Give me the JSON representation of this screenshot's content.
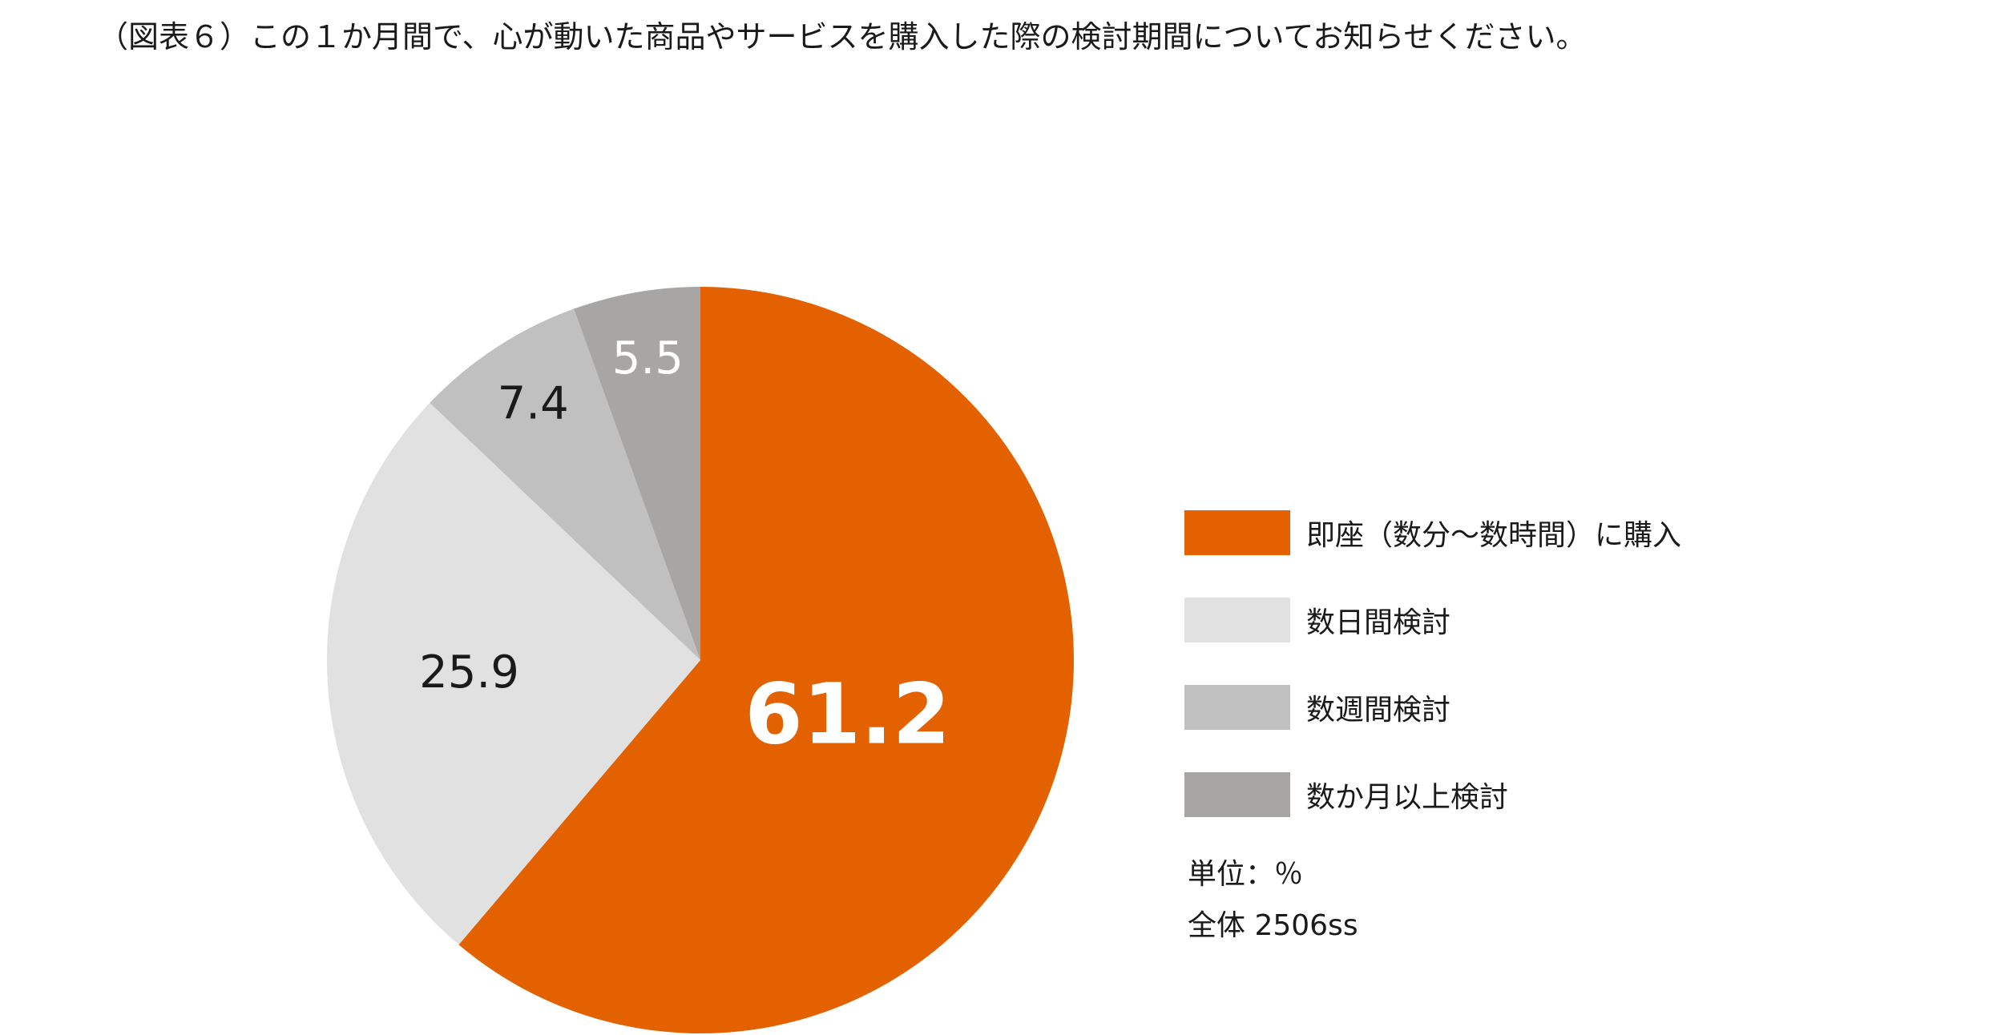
{
  "title": "（図表６）この１か月間で、心が動いた商品やサービスを購入した際の検討期間についてお知らせください。",
  "chart_data": {
    "type": "pie",
    "start_angle_deg": 0,
    "direction": "clockwise",
    "slices": [
      {
        "label": "即座（数分〜数時間）に購入",
        "value": 61.2,
        "display": "61.2",
        "color": "#E46100",
        "label_color": "#ffffff",
        "label_style": "large"
      },
      {
        "label": "数日間検討",
        "value": 25.9,
        "display": "25.9",
        "color": "#E2E1E1",
        "label_color": "#1a1a1a",
        "label_style": "normal"
      },
      {
        "label": "数週間検討",
        "value": 7.4,
        "display": "7.4",
        "color": "#C0C0C0",
        "label_color": "#1a1a1a",
        "label_style": "normal"
      },
      {
        "label": "数か月以上検討",
        "value": 5.5,
        "display": "5.5",
        "color": "#A8A5A5",
        "label_color": "#ffffff",
        "label_style": "normal"
      }
    ],
    "legend_position": "right"
  },
  "notes": {
    "unit": "単位：％",
    "total": "全体 2506ss"
  }
}
